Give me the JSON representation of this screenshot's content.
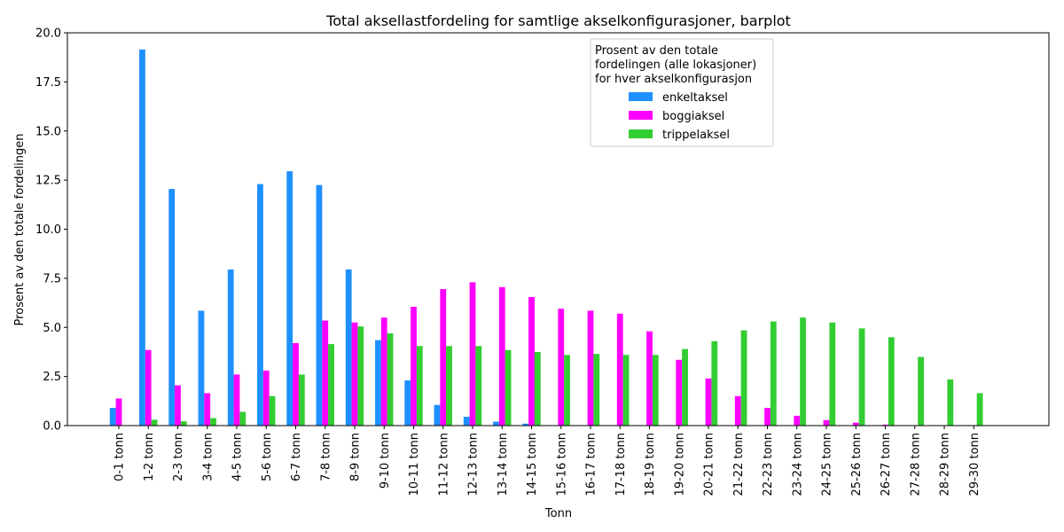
{
  "chart_data": {
    "type": "bar",
    "title": "Total aksellastfordeling for samtlige akselkonfigurasjoner, barplot",
    "xlabel": "Tonn",
    "ylabel": "Prosent av den totale fordelingen",
    "ylim": [
      0,
      20
    ],
    "yticks": [
      "0.0",
      "2.5",
      "5.0",
      "7.5",
      "10.0",
      "12.5",
      "15.0",
      "17.5",
      "20.0"
    ],
    "grid": false,
    "legend": {
      "title_lines": [
        "Prosent av den totale",
        "fordelingen (alle lokasjoner)",
        "for hver akselkonfigurasjon"
      ],
      "placement": "top-right"
    },
    "categories": [
      "0-1 tonn",
      "1-2 tonn",
      "2-3 tonn",
      "3-4 tonn",
      "4-5 tonn",
      "5-6 tonn",
      "6-7 tonn",
      "7-8 tonn",
      "8-9 tonn",
      "9-10 tonn",
      "10-11 tonn",
      "11-12 tonn",
      "12-13 tonn",
      "13-14 tonn",
      "14-15 tonn",
      "15-16 tonn",
      "16-17 tonn",
      "17-18 tonn",
      "18-19 tonn",
      "19-20 tonn",
      "20-21 tonn",
      "21-22 tonn",
      "22-23 tonn",
      "23-24 tonn",
      "24-25 tonn",
      "25-26 tonn",
      "26-27 tonn",
      "27-28 tonn",
      "28-29 tonn",
      "29-30 tonn"
    ],
    "series": [
      {
        "name": "enkeltaksel",
        "color": "#1e90ff",
        "values": [
          0.9,
          19.15,
          12.05,
          5.85,
          7.95,
          12.3,
          12.95,
          12.25,
          7.95,
          4.35,
          2.3,
          1.05,
          0.45,
          0.2,
          0.1,
          0.02,
          0.01,
          0,
          0,
          0,
          0,
          0,
          0,
          0,
          0,
          0,
          0,
          0,
          0,
          0
        ]
      },
      {
        "name": "boggiaksel",
        "color": "#ff00ff",
        "values": [
          1.38,
          3.85,
          2.05,
          1.65,
          2.6,
          2.8,
          4.2,
          5.35,
          5.25,
          5.5,
          6.05,
          6.95,
          7.3,
          7.05,
          6.55,
          5.95,
          5.85,
          5.7,
          4.8,
          3.35,
          2.4,
          1.5,
          0.9,
          0.5,
          0.28,
          0.15,
          0.05,
          0.02,
          0,
          0
        ]
      },
      {
        "name": "trippelaksel",
        "color": "#32cd32",
        "values": [
          0,
          0.3,
          0.22,
          0.38,
          0.7,
          1.5,
          2.6,
          4.15,
          5.05,
          4.7,
          4.05,
          4.05,
          4.05,
          3.85,
          3.75,
          3.6,
          3.65,
          3.6,
          3.6,
          3.9,
          4.3,
          4.85,
          5.3,
          5.5,
          5.25,
          4.95,
          4.5,
          3.5,
          2.35,
          1.65
        ]
      }
    ]
  }
}
